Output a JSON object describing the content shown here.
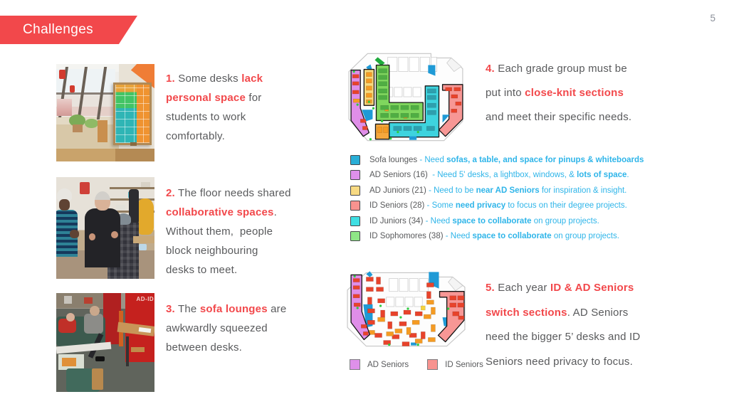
{
  "page_number": "5",
  "banner": {
    "title": "Challenges"
  },
  "colors": {
    "accent_red": "#f2484b",
    "body_text": "#595a5c",
    "legend_blue": "#2fb5e9",
    "page_number": "#8b909a"
  },
  "photos": {
    "lounge_cabinet_label": "AD-ID"
  },
  "challenges": {
    "item1": [
      {
        "t": "1.",
        "c": "accent"
      },
      {
        "t": " Some desks ",
        "c": "plain"
      },
      {
        "t": "lack",
        "c": "accent"
      },
      {
        "br": true
      },
      {
        "t": "personal space",
        "c": "accent"
      },
      {
        "t": " for",
        "c": "plain"
      },
      {
        "br": true
      },
      {
        "t": "students to work",
        "c": "plain"
      },
      {
        "br": true
      },
      {
        "t": "comfortably.",
        "c": "plain"
      }
    ],
    "item2": [
      {
        "t": "2.",
        "c": "accent"
      },
      {
        "t": " The floor needs shared",
        "c": "plain"
      },
      {
        "br": true
      },
      {
        "t": "collaborative spaces",
        "c": "accent"
      },
      {
        "t": ".",
        "c": "plain"
      },
      {
        "br": true
      },
      {
        "t": "Without them,  people",
        "c": "plain"
      },
      {
        "br": true
      },
      {
        "t": "block neighbouring",
        "c": "plain"
      },
      {
        "br": true
      },
      {
        "t": "desks to meet.",
        "c": "plain"
      }
    ],
    "item3": [
      {
        "t": "3.",
        "c": "accent"
      },
      {
        "t": " The ",
        "c": "plain"
      },
      {
        "t": "sofa lounges",
        "c": "accent"
      },
      {
        "t": " are",
        "c": "plain"
      },
      {
        "br": true
      },
      {
        "t": "awkwardly squeezed",
        "c": "plain"
      },
      {
        "br": true
      },
      {
        "t": "between desks.",
        "c": "plain"
      }
    ],
    "item4": [
      {
        "t": "4.",
        "c": "accent"
      },
      {
        "t": " Each grade group must be",
        "c": "plain"
      },
      {
        "br": true
      },
      {
        "t": "put into ",
        "c": "plain"
      },
      {
        "t": "close-knit sections",
        "c": "accent"
      },
      {
        "br": true
      },
      {
        "t": "and meet their specific needs.",
        "c": "plain"
      }
    ],
    "item5": [
      {
        "t": "5.",
        "c": "accent"
      },
      {
        "t": " Each year ",
        "c": "plain"
      },
      {
        "t": "ID & AD Seniors",
        "c": "accent"
      },
      {
        "br": true
      },
      {
        "t": "switch sections",
        "c": "accent"
      },
      {
        "t": ". AD Seniors",
        "c": "plain"
      },
      {
        "br": true
      },
      {
        "t": "need the bigger 5’ desks and ID",
        "c": "plain"
      },
      {
        "br": true
      },
      {
        "t": "Seniors need privacy to focus.",
        "c": "plain"
      }
    ]
  },
  "legend": {
    "items": [
      {
        "color": "#29aed6",
        "label": "Sofa lounges",
        "desc": [
          {
            "t": " - Need ",
            "c": "blue"
          },
          {
            "t": "sofas, a table, and space for pinups & whiteboards",
            "c": "blueb"
          }
        ]
      },
      {
        "color": "#df90ea",
        "label": "AD Seniors (16)",
        "desc": [
          {
            "t": "  - Need 5' desks, a lightbox, windows, & ",
            "c": "blue"
          },
          {
            "t": "lots of space",
            "c": "blueb"
          },
          {
            "t": ".",
            "c": "blue"
          }
        ]
      },
      {
        "color": "#f8da82",
        "label": "AD Juniors (21)",
        "desc": [
          {
            "t": " - Need to be ",
            "c": "blue"
          },
          {
            "t": "near AD Seniors",
            "c": "blueb"
          },
          {
            "t": " for inspiration & insight.",
            "c": "blue"
          }
        ]
      },
      {
        "color": "#f8938f",
        "label": "ID Seniors (28)",
        "desc": [
          {
            "t": " - Some ",
            "c": "blue"
          },
          {
            "t": "need privacy",
            "c": "blueb"
          },
          {
            "t": " to focus on their degree projects.",
            "c": "blue"
          }
        ]
      },
      {
        "color": "#3fdfe3",
        "label": "ID Juniors (34)",
        "desc": [
          {
            "t": " - Need ",
            "c": "blue"
          },
          {
            "t": "space to collaborate",
            "c": "blueb"
          },
          {
            "t": " on group projects.",
            "c": "blue"
          }
        ]
      },
      {
        "color": "#8fe687",
        "label": "ID Sophomores (38)",
        "desc": [
          {
            "t": " - Need ",
            "c": "blue"
          },
          {
            "t": "space to collaborate",
            "c": "blueb"
          },
          {
            "t": " on group projects.",
            "c": "blue"
          }
        ]
      }
    ]
  },
  "plan_legend": {
    "items": [
      {
        "color": "#df90ea",
        "label": "AD Seniors"
      },
      {
        "color": "#f8938f",
        "label": "ID Seniors"
      }
    ]
  },
  "plan_colors": {
    "outline": "#c5c5c5",
    "purple": "#df8ee8",
    "yellow": "#f7d97f",
    "green": "#7fd65e",
    "cyan": "#3ed3de",
    "salmon": "#f79795",
    "orange": "#f6a83d",
    "blue": "#1f9ad6",
    "desk_red": "#e8432b",
    "desk_orange": "#f59b23",
    "desk_green": "#4fae43",
    "desk_teal": "#2f9fae",
    "deco_green": "#2ecc40"
  }
}
